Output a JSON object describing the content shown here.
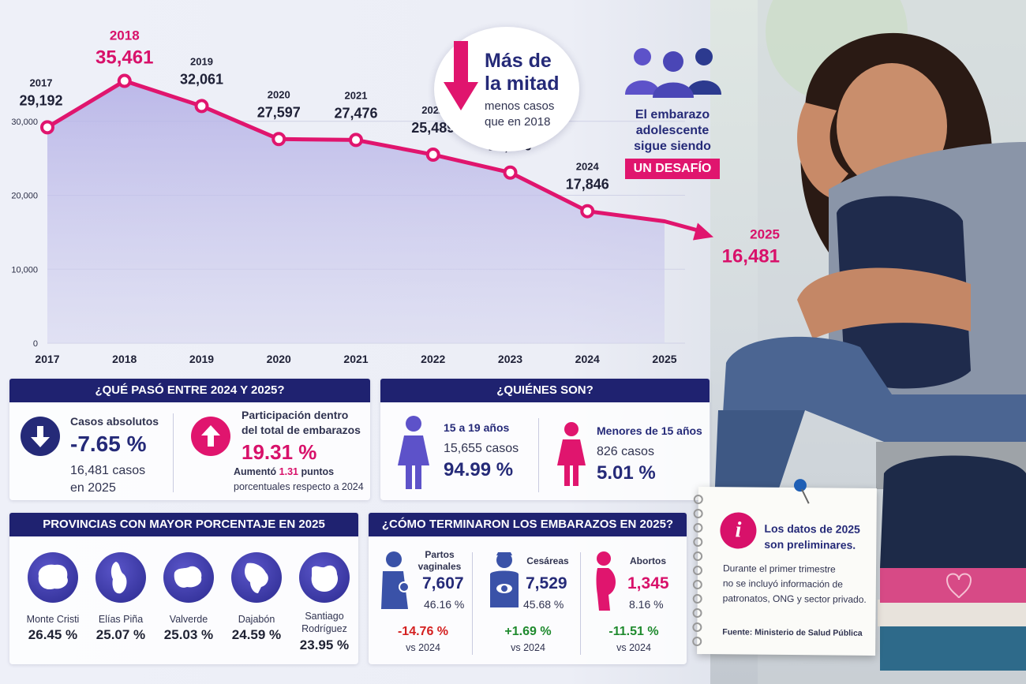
{
  "chart_data": {
    "type": "area",
    "x": [
      2017,
      2018,
      2019,
      2020,
      2021,
      2022,
      2023,
      2024,
      2025
    ],
    "values": [
      29192,
      35461,
      32061,
      27597,
      27476,
      25489,
      23070,
      17846,
      16481
    ],
    "value_labels": [
      "29,192",
      "35,461",
      "32,061",
      "27,597",
      "27,476",
      "25,489",
      "23,070",
      "17,846",
      "16,481"
    ],
    "year_labels": [
      "2017",
      "2018",
      "2019",
      "2020",
      "2021",
      "2022",
      "2023",
      "2024",
      "2025"
    ],
    "y_ticks": [
      "0",
      "10,000",
      "20,000",
      "30,000"
    ],
    "y_tick_values": [
      0,
      10000,
      20000,
      30000
    ],
    "ylim": [
      0,
      40000
    ],
    "grid": true,
    "line_color": "#e0156e",
    "fill_color": "#b8b6e8",
    "highlight_color": "#d8116a"
  },
  "callout_half": {
    "title_line1": "Más de",
    "title_line2": "la mitad",
    "sub_line1": "menos casos",
    "sub_line2": "que en 2018"
  },
  "callout_challenge": {
    "line1": "El embarazo",
    "line2": "adolescente",
    "line3": "sigue siendo",
    "badge": "UN DESAFÍO"
  },
  "panel_changes": {
    "title": "¿QUÉ PASÓ ENTRE 2024 Y 2025?",
    "abs_label": "Casos absolutos",
    "abs_value": "-7.65 %",
    "abs_cases_line1": "16,481 casos",
    "abs_cases_line2": "en 2025",
    "share_label_line1": "Participación dentro",
    "share_label_line2": "del total de embarazos",
    "share_value": "19.31 %",
    "share_note_pre": "Aumentó ",
    "share_note_value": "1.31",
    "share_note_post": " puntos",
    "share_note_line2": "porcentuales respecto a 2024"
  },
  "panel_who": {
    "title": "¿QUIÉNES SON?",
    "group1_label": "15 a 19 años",
    "group1_cases": "15,655 casos",
    "group1_pct": "94.99 %",
    "group2_label": "Menores de 15 años",
    "group2_cases": "826 casos",
    "group2_pct": "5.01 %"
  },
  "panel_provinces": {
    "title": "PROVINCIAS CON MAYOR PORCENTAJE EN 2025",
    "items": [
      {
        "name": "Monte Cristi",
        "name2": "",
        "pct": "26.45 %"
      },
      {
        "name": "Elías Piña",
        "name2": "",
        "pct": "25.07 %"
      },
      {
        "name": "Valverde",
        "name2": "",
        "pct": "25.03 %"
      },
      {
        "name": "Dajabón",
        "name2": "",
        "pct": "24.59 %"
      },
      {
        "name": "Santiago",
        "name2": "Rodríguez",
        "pct": "23.95 %"
      }
    ]
  },
  "panel_outcomes": {
    "title": "¿CÓMO TERMINARON LOS EMBARAZOS EN 2025?",
    "items": [
      {
        "label1": "Partos",
        "label2": "vaginales",
        "value": "7,607",
        "pct": "46.16 %",
        "change": "-14.76 %",
        "vs": "vs 2024",
        "change_color": "#d42020",
        "value_color": "#252a78"
      },
      {
        "label1": "Cesáreas",
        "label2": "",
        "value": "7,529",
        "pct": "45.68 %",
        "change": "+1.69 %",
        "vs": "vs 2024",
        "change_color": "#1f8a2e",
        "value_color": "#252a78"
      },
      {
        "label1": "Abortos",
        "label2": "",
        "value": "1,345",
        "pct": "8.16 %",
        "change": "-11.51 %",
        "vs": "vs 2024",
        "change_color": "#1f8a2e",
        "value_color": "#d8116a"
      }
    ]
  },
  "note_card": {
    "title_line1": "Los datos de 2025",
    "title_line2": "son preliminares.",
    "body_line1": "Durante el primer trimestre",
    "body_line2": "no se incluyó información de",
    "body_line3": "patronatos, ONG y sector privado.",
    "source": "Fuente: Ministerio de Salud Pública"
  }
}
